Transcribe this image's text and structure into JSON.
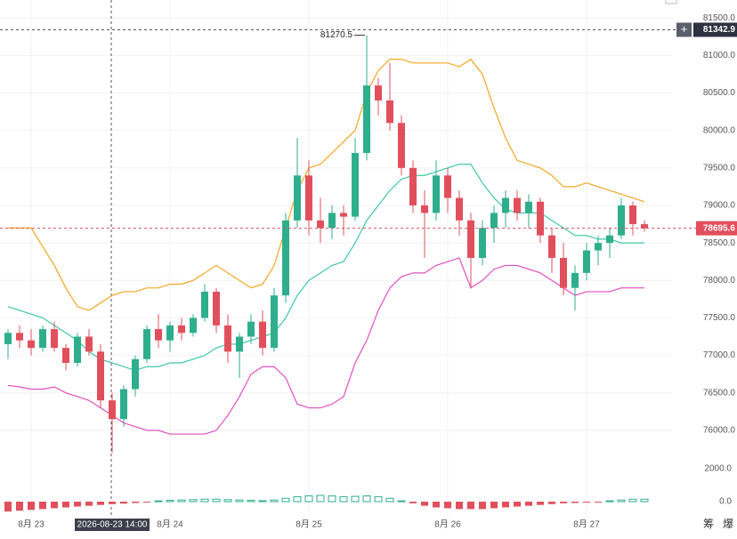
{
  "chart_data": {
    "type": "candlestick",
    "categories": [
      null,
      null,
      "8月 23",
      null,
      null,
      null,
      null,
      null,
      null,
      null,
      null,
      null,
      null,
      null,
      "8月 24",
      null,
      null,
      null,
      null,
      null,
      null,
      null,
      null,
      null,
      null,
      null,
      "8月 25",
      null,
      null,
      null,
      null,
      null,
      null,
      null,
      null,
      null,
      null,
      null,
      "8月 26",
      null,
      null,
      null,
      null,
      null,
      null,
      null,
      null,
      null,
      null,
      null,
      "8月 27",
      null,
      null,
      null,
      null,
      null
    ],
    "open": [
      77150,
      77300,
      77200,
      77100,
      77350,
      77100,
      76900,
      77250,
      77050,
      76400,
      76150,
      76550,
      76950,
      77350,
      77200,
      77400,
      77300,
      77500,
      77850,
      77400,
      77050,
      77250,
      77450,
      77100,
      77800,
      78800,
      79400,
      78800,
      78700,
      78900,
      78850,
      79700,
      80600,
      80400,
      80100,
      79500,
      79000,
      78900,
      79400,
      79100,
      78800,
      78300,
      78700,
      78900,
      79100,
      78900,
      79050,
      78600,
      78300,
      77900,
      78100,
      78400,
      78500,
      78600,
      79000,
      78750
    ],
    "high": [
      77350,
      77400,
      77350,
      77400,
      77450,
      77150,
      77300,
      77350,
      77150,
      76500,
      76600,
      77000,
      77400,
      77550,
      77450,
      77500,
      77550,
      77950,
      77900,
      77550,
      77300,
      77550,
      77600,
      77900,
      78900,
      79900,
      79600,
      79100,
      79000,
      79000,
      79900,
      81270.5,
      80700,
      80900,
      80200,
      79600,
      79200,
      79600,
      79500,
      79200,
      78900,
      78800,
      79000,
      79200,
      79200,
      79150,
      79100,
      78700,
      78500,
      78200,
      78500,
      78600,
      78700,
      79100,
      79050,
      78800
    ],
    "low": [
      76950,
      77100,
      77000,
      77050,
      77050,
      76800,
      76850,
      77000,
      76300,
      75700,
      76050,
      76450,
      76900,
      77100,
      77050,
      77200,
      77250,
      77450,
      77300,
      76900,
      76700,
      77150,
      77000,
      77050,
      77700,
      78700,
      78600,
      78500,
      78550,
      78600,
      78800,
      79600,
      80200,
      80000,
      79400,
      78900,
      78300,
      78800,
      78900,
      78600,
      77900,
      78200,
      78500,
      78700,
      78800,
      78700,
      78500,
      78100,
      77800,
      77600,
      78000,
      78200,
      78300,
      78550,
      78600,
      78650
    ],
    "close": [
      77300,
      77200,
      77100,
      77350,
      77100,
      76900,
      77250,
      77050,
      76400,
      76150,
      76550,
      76950,
      77350,
      77200,
      77400,
      77300,
      77500,
      77850,
      77400,
      77050,
      77250,
      77450,
      77100,
      77800,
      78800,
      79400,
      78800,
      78700,
      78900,
      78850,
      79700,
      80600,
      80400,
      80100,
      79500,
      79000,
      78900,
      79400,
      79100,
      78800,
      78300,
      78700,
      78900,
      79100,
      78900,
      79050,
      78600,
      78300,
      77900,
      78100,
      78400,
      78500,
      78600,
      79000,
      78750,
      78695.6
    ],
    "up_color": "#2eae8c",
    "down_color": "#e14f5c",
    "overlays": [
      {
        "color": "#f5a623",
        "values": [
          78700,
          78700,
          78700,
          78450,
          78200,
          77900,
          77650,
          77600,
          77700,
          77800,
          77850,
          77850,
          77900,
          77900,
          77950,
          77950,
          78000,
          78100,
          78200,
          78100,
          78000,
          77900,
          77950,
          78200,
          78700,
          79200,
          79500,
          79550,
          79700,
          79850,
          80000,
          80500,
          80800,
          80950,
          80950,
          80900,
          80900,
          80900,
          80900,
          80850,
          80950,
          80750,
          80300,
          79900,
          79600,
          79550,
          79500,
          79400,
          79250,
          79250,
          79300,
          79250,
          79200,
          79150,
          79100,
          79050
        ]
      },
      {
        "color": "#3cc8a8",
        "values": [
          77650,
          77600,
          77550,
          77500,
          77400,
          77300,
          77200,
          77050,
          76950,
          76900,
          76850,
          76800,
          76850,
          76850,
          76900,
          76900,
          76950,
          77000,
          77100,
          77150,
          77150,
          77200,
          77250,
          77300,
          77500,
          77800,
          78000,
          78100,
          78200,
          78250,
          78500,
          78800,
          79000,
          79200,
          79350,
          79400,
          79400,
          79450,
          79500,
          79550,
          79550,
          79300,
          79100,
          78950,
          78900,
          78900,
          78900,
          78800,
          78700,
          78600,
          78600,
          78550,
          78550,
          78500,
          78500,
          78500
        ]
      },
      {
        "color": "#e04fc0",
        "values": [
          76600,
          76580,
          76550,
          76550,
          76580,
          76500,
          76450,
          76400,
          76300,
          76200,
          76100,
          76050,
          76000,
          76000,
          75950,
          75950,
          75950,
          75950,
          76000,
          76200,
          76450,
          76750,
          76850,
          76850,
          76700,
          76350,
          76300,
          76300,
          76350,
          76450,
          76900,
          77200,
          77600,
          77900,
          78050,
          78100,
          78100,
          78200,
          78250,
          78300,
          77900,
          78000,
          78150,
          78200,
          78200,
          78150,
          78100,
          78000,
          77900,
          77800,
          77850,
          77850,
          77850,
          77900,
          77900,
          77900
        ]
      }
    ],
    "ylim": [
      75690,
      81740
    ],
    "yticks": [
      {
        "value": 76000,
        "label": "76000.0"
      },
      {
        "value": 76500,
        "label": "76500.0"
      },
      {
        "value": 77000,
        "label": "77000.0"
      },
      {
        "value": 77500,
        "label": "77500.0"
      },
      {
        "value": 78000,
        "label": "78000.0"
      },
      {
        "value": 78500,
        "label": "78500.0"
      },
      {
        "value": 79000,
        "label": "79000.0"
      },
      {
        "value": 79500,
        "label": "79500.0"
      },
      {
        "value": 80000,
        "label": "80000.0"
      },
      {
        "value": 80500,
        "label": "80500.0"
      },
      {
        "value": 81000,
        "label": "81000.0"
      },
      {
        "value": 81500,
        "label": "81500.0"
      }
    ],
    "grid": true,
    "crosshair": {
      "price": 81342.9,
      "time": "2026-08-23 14:00"
    },
    "macd": {
      "values": [
        -600,
        -550,
        -500,
        -450,
        -400,
        -350,
        -300,
        -250,
        -200,
        -150,
        -120,
        -80,
        -50,
        50,
        80,
        100,
        120,
        150,
        150,
        120,
        100,
        80,
        60,
        100,
        200,
        300,
        350,
        380,
        350,
        300,
        320,
        350,
        300,
        200,
        50,
        -100,
        -250,
        -350,
        -400,
        -450,
        -450,
        -450,
        -400,
        -350,
        -300,
        -250,
        -200,
        -150,
        -100,
        -80,
        -50,
        -30,
        50,
        100,
        150,
        150
      ],
      "ylim": [
        -865,
        2650
      ],
      "yticks": [
        {
          "value": 0,
          "label": "0.0"
        },
        {
          "value": 2000,
          "label": "2000.0"
        }
      ]
    },
    "tools": [
      "筹",
      "爆"
    ]
  }
}
